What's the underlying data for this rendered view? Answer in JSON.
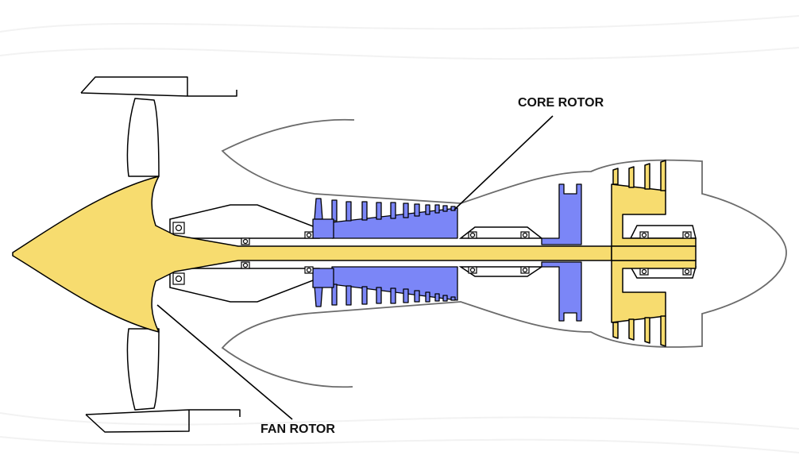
{
  "labels": {
    "core_rotor": "CORE ROTOR",
    "fan_rotor": "FAN ROTOR"
  },
  "colors": {
    "core_rotor": "#7b86f7",
    "fan_rotor": "#f7dc6f",
    "outline": "#000000",
    "casing": "#6b6b6b",
    "background": "#ffffff"
  }
}
